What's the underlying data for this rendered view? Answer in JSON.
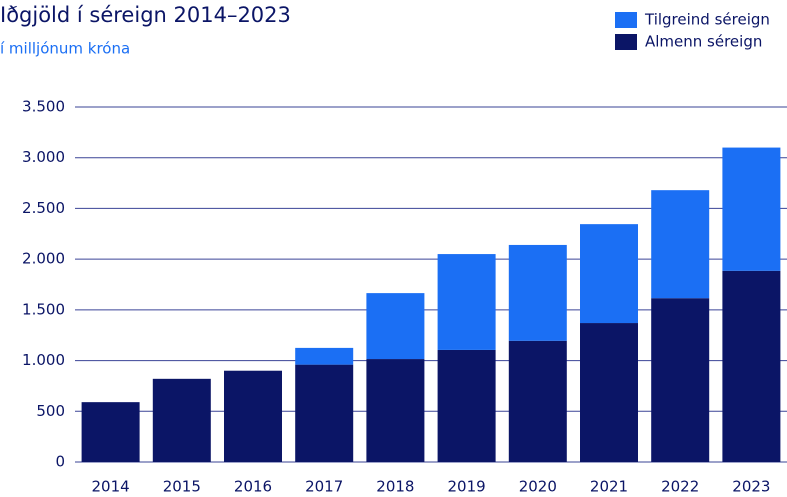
{
  "chart_data": {
    "type": "stacked_bar",
    "title": "Iðgjöld í séreign 2014–2023",
    "subtitle": "í milljónum króna",
    "categories": [
      "2014",
      "2015",
      "2016",
      "2017",
      "2018",
      "2019",
      "2020",
      "2021",
      "2022",
      "2023"
    ],
    "series": [
      {
        "name": "Almenn séreign",
        "color": "#0b1566",
        "values": [
          590,
          820,
          900,
          960,
          1015,
          1105,
          1195,
          1370,
          1615,
          1885
        ]
      },
      {
        "name": "Tilgreind séreign",
        "color": "#1b6ff4",
        "values": [
          0,
          0,
          0,
          165,
          650,
          945,
          945,
          975,
          1065,
          1215
        ]
      }
    ],
    "ylim": [
      0,
      3500
    ],
    "yticks": [
      0,
      500,
      {
        "value": 1000,
        "label": "1.000"
      },
      {
        "value": 1500,
        "label": "1.500"
      },
      {
        "value": 2000,
        "label": "2.000"
      },
      {
        "value": 2500,
        "label": "2.500"
      },
      {
        "value": 3000,
        "label": "3.000"
      },
      {
        "value": 3500,
        "label": "3.500"
      }
    ],
    "grid": true,
    "legend": "top-right"
  }
}
